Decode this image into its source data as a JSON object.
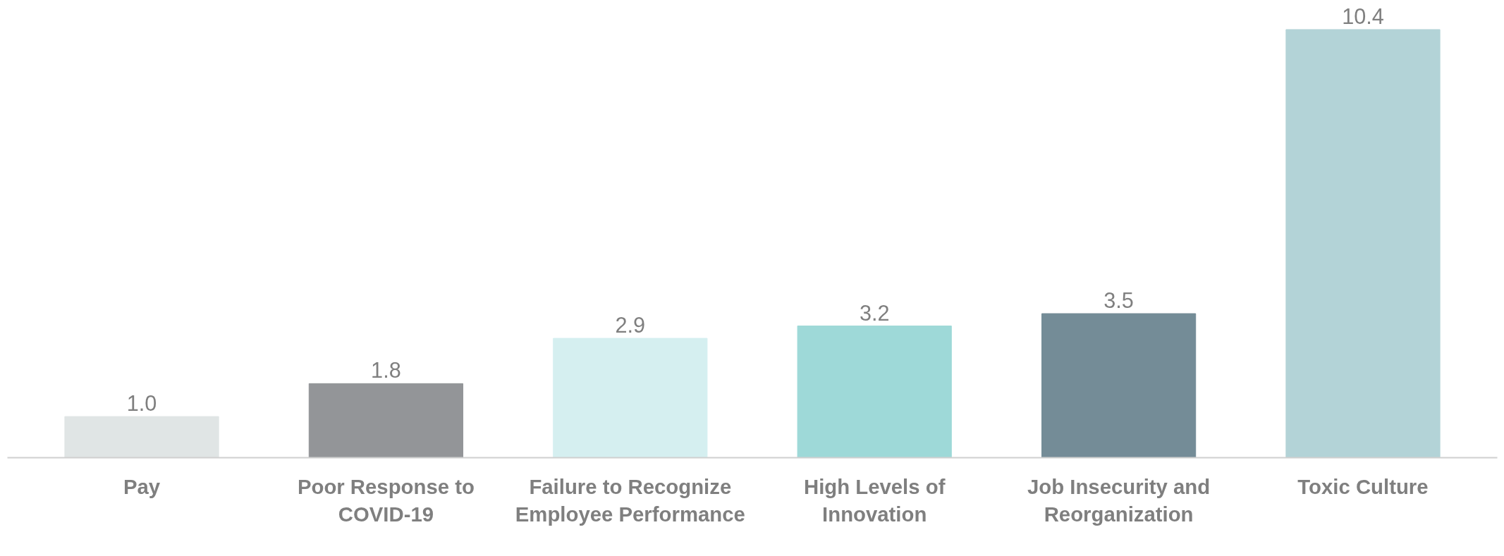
{
  "chart_data": {
    "type": "bar",
    "categories": [
      "Pay",
      "Poor Response to COVID-19",
      "Failure to Recognize Employee Performance",
      "High Levels of Innovation",
      "Job Insecurity and Reorganization",
      "Toxic Culture"
    ],
    "values": [
      1.0,
      1.8,
      2.9,
      3.2,
      3.5,
      10.4
    ],
    "colors": [
      "#e0e5e5",
      "#939598",
      "#d5eff0",
      "#9ed9d8",
      "#748c97",
      "#b3d3d7"
    ],
    "value_labels": [
      "1.0",
      "1.8",
      "2.9",
      "3.2",
      "3.5",
      "10.4"
    ],
    "grid": false
  }
}
